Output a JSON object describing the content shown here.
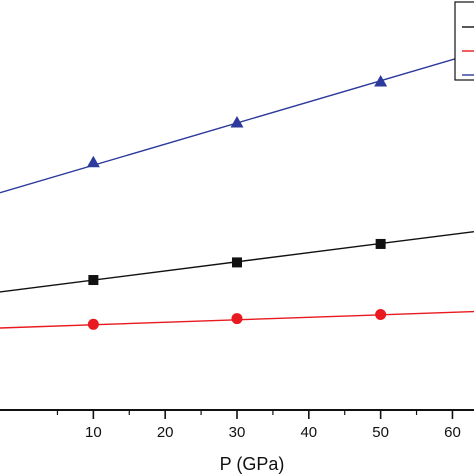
{
  "chart_data": {
    "type": "line",
    "xlabel": "P (GPa)",
    "x_ticks": [
      10,
      20,
      30,
      40,
      50,
      60
    ],
    "xlim": [
      -3,
      63
    ],
    "ylim": [
      0,
      1
    ],
    "grid": false,
    "legend_placement": "top-right",
    "series": [
      {
        "marker": "triangle",
        "color": "#2b3a9c",
        "x": [
          10,
          30,
          50
        ],
        "y": [
          0.603,
          0.7,
          0.8
        ],
        "line_x": [
          -3,
          63
        ],
        "line_y": [
          0.53,
          0.87
        ]
      },
      {
        "marker": "square",
        "color": "#111111",
        "x": [
          10,
          30,
          50
        ],
        "y": [
          0.317,
          0.36,
          0.405
        ],
        "line_x": [
          -3,
          63
        ],
        "line_y": [
          0.288,
          0.435
        ]
      },
      {
        "marker": "circle",
        "color": "#e8191f",
        "x": [
          10,
          30,
          50
        ],
        "y": [
          0.209,
          0.223,
          0.233
        ],
        "line_x": [
          -3,
          63
        ],
        "line_y": [
          0.2,
          0.24
        ]
      }
    ]
  }
}
